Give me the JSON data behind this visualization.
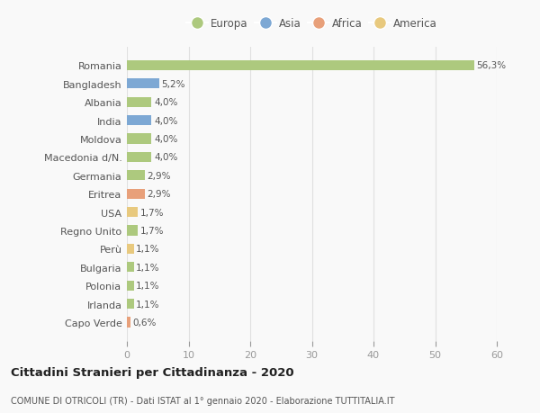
{
  "categories": [
    "Capo Verde",
    "Irlanda",
    "Polonia",
    "Bulgaria",
    "Perù",
    "Regno Unito",
    "USA",
    "Eritrea",
    "Germania",
    "Macedonia d/N.",
    "Moldova",
    "India",
    "Albania",
    "Bangladesh",
    "Romania"
  ],
  "values": [
    0.6,
    1.1,
    1.1,
    1.1,
    1.1,
    1.7,
    1.7,
    2.9,
    2.9,
    4.0,
    4.0,
    4.0,
    4.0,
    5.2,
    56.3
  ],
  "colors": [
    "#e8a07a",
    "#adc97e",
    "#adc97e",
    "#adc97e",
    "#e8c97e",
    "#adc97e",
    "#e8c97e",
    "#e8a07a",
    "#adc97e",
    "#adc97e",
    "#adc97e",
    "#7da8d4",
    "#adc97e",
    "#7da8d4",
    "#adc97e"
  ],
  "labels": [
    "0,6%",
    "1,1%",
    "1,1%",
    "1,1%",
    "1,1%",
    "1,7%",
    "1,7%",
    "2,9%",
    "2,9%",
    "4,0%",
    "4,0%",
    "4,0%",
    "4,0%",
    "5,2%",
    "56,3%"
  ],
  "legend": [
    {
      "label": "Europa",
      "color": "#adc97e"
    },
    {
      "label": "Asia",
      "color": "#7da8d4"
    },
    {
      "label": "Africa",
      "color": "#e8a07a"
    },
    {
      "label": "America",
      "color": "#e8c97e"
    }
  ],
  "title": "Cittadini Stranieri per Cittadinanza - 2020",
  "subtitle": "COMUNE DI OTRICOLI (TR) - Dati ISTAT al 1° gennaio 2020 - Elaborazione TUTTITALIA.IT",
  "xlim": [
    0,
    60
  ],
  "xticks": [
    0,
    10,
    20,
    30,
    40,
    50,
    60
  ],
  "background_color": "#f9f9f9",
  "grid_color": "#e0e0e0",
  "bar_height": 0.55
}
